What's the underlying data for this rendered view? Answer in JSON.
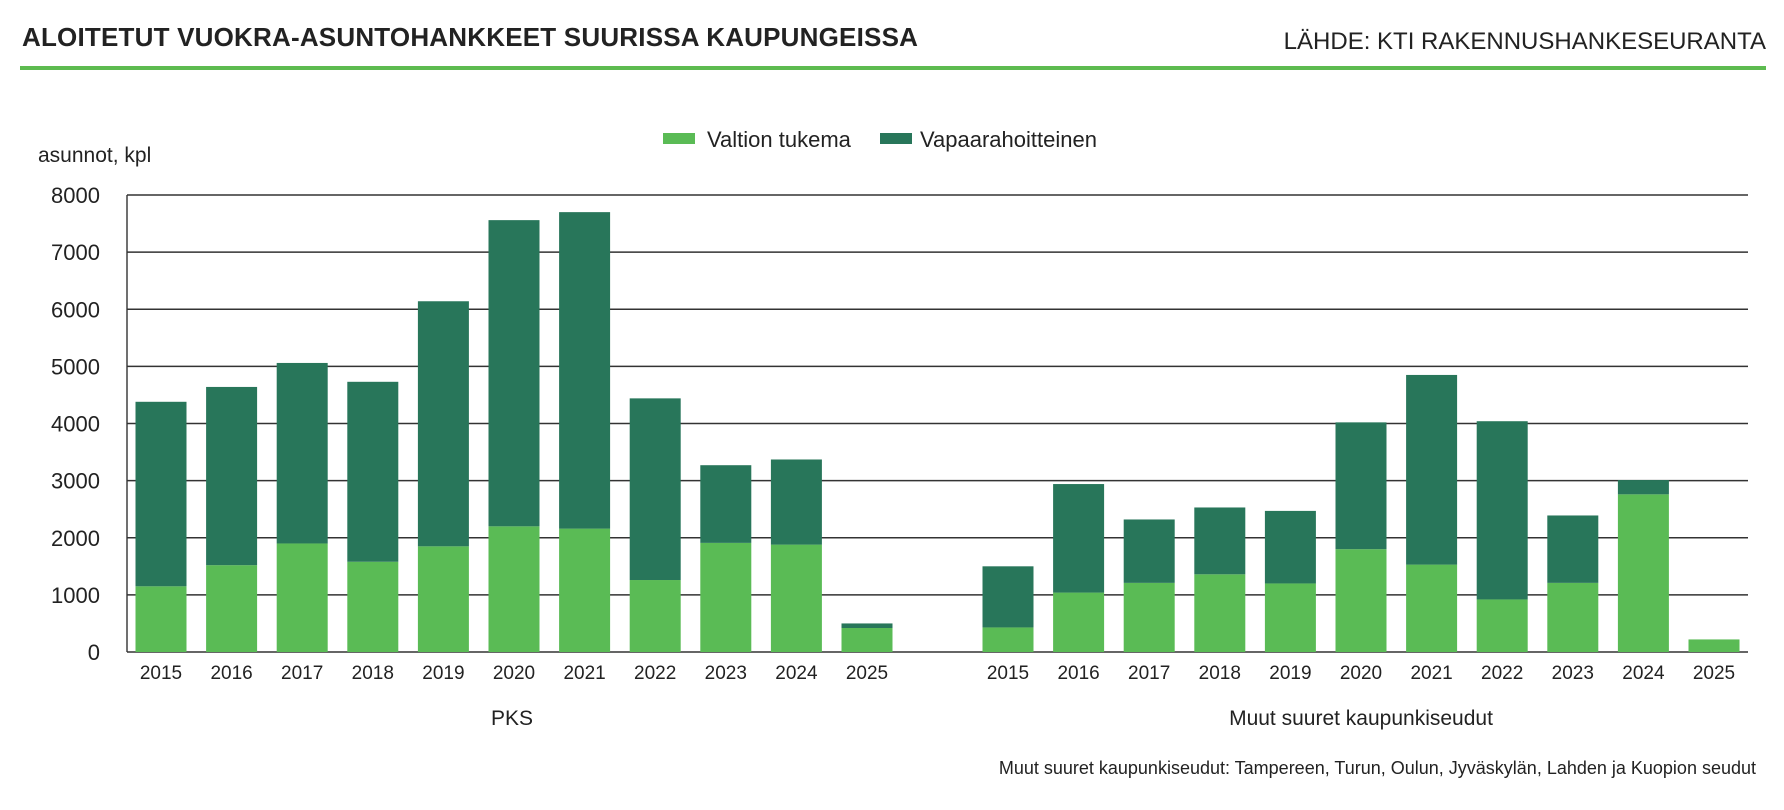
{
  "header": {
    "title": "ALOITETUT VUOKRA-ASUNTOHANKKEET SUURISSA KAUPUNGEISSA",
    "source": "LÄHDE: KTI RAKENNUSHANKESEURANTA"
  },
  "colors": {
    "accent_rule": "#5dbb50",
    "series_state": "#5abb55",
    "series_free": "#28765a",
    "gridline": "#333333"
  },
  "footnote": "Muut suuret kaupunkiseudut: Tampereen, Turun, Oulun, Jyväskylän, Lahden ja Kuopion seudut",
  "chart_data": {
    "type": "bar",
    "stacked": true,
    "ylabel": "asunnot, kpl",
    "ylim": [
      0,
      8000
    ],
    "yticks": [
      0,
      1000,
      2000,
      3000,
      4000,
      5000,
      6000,
      7000,
      8000
    ],
    "grid": true,
    "legend_position": "top-center",
    "legend": [
      "Valtion tukema",
      "Vapaarahoitteinen"
    ],
    "groups": [
      {
        "name": "PKS",
        "categories": [
          "2015",
          "2016",
          "2017",
          "2018",
          "2019",
          "2020",
          "2021",
          "2022",
          "2023",
          "2024",
          "2025"
        ],
        "series": [
          {
            "name": "Valtion tukema",
            "values": [
              1150,
              1520,
              1900,
              1580,
              1850,
              2200,
              2160,
              1260,
              1910,
              1880,
              420
            ]
          },
          {
            "name": "Vapaarahoitteinen",
            "values": [
              3230,
              3120,
              3160,
              3150,
              4290,
              5360,
              5540,
              3180,
              1360,
              1490,
              80
            ]
          }
        ]
      },
      {
        "name": "Muut suuret kaupunkiseudut",
        "categories": [
          "2015",
          "2016",
          "2017",
          "2018",
          "2019",
          "2020",
          "2021",
          "2022",
          "2023",
          "2024",
          "2025"
        ],
        "series": [
          {
            "name": "Valtion tukema",
            "values": [
              430,
              1040,
              1210,
              1360,
              1200,
              1800,
              1530,
              920,
              1210,
              2760,
              220
            ]
          },
          {
            "name": "Vapaarahoitteinen",
            "values": [
              1070,
              1900,
              1110,
              1170,
              1270,
              2220,
              3320,
              3120,
              1180,
              250,
              0
            ]
          }
        ]
      }
    ]
  }
}
